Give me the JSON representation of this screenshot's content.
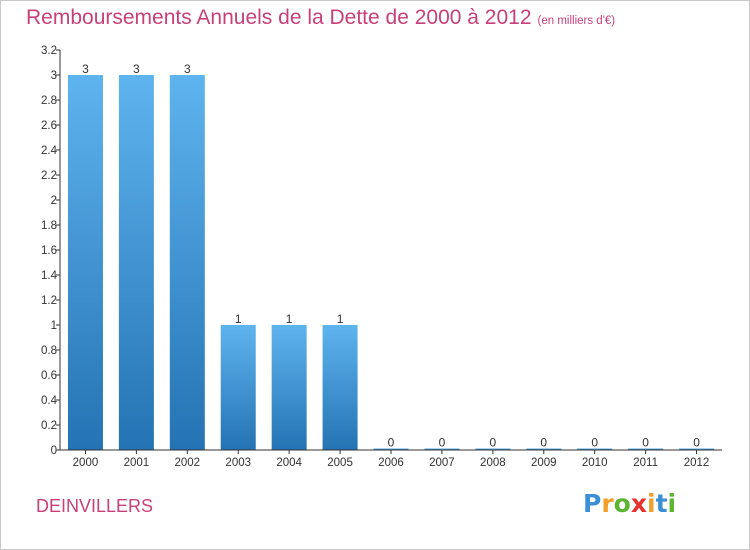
{
  "title": "Remboursements Annuels de la Dette de 2000 à 2012",
  "subtitle": "(en milliers d'€)",
  "commune": "DEINVILLERS",
  "brand": {
    "letters": [
      "P",
      "r",
      "o",
      "x",
      "i",
      "t",
      "i"
    ],
    "colors": [
      "#3b8fd6",
      "#f0a02a",
      "#5cb531",
      "#e5322d",
      "#f0a02a",
      "#3b8fd6",
      "#5cb531"
    ]
  },
  "colors": {
    "bar_top": "#5eb4ee",
    "bar_bottom": "#2473b4",
    "axis": "#333333",
    "text": "#333333",
    "accent": "#c8407a"
  },
  "chart_data": {
    "type": "bar",
    "categories": [
      "2000",
      "2001",
      "2002",
      "2003",
      "2004",
      "2005",
      "2006",
      "2007",
      "2008",
      "2009",
      "2010",
      "2011",
      "2012"
    ],
    "values": [
      3,
      3,
      3,
      1,
      1,
      1,
      0,
      0,
      0,
      0,
      0,
      0,
      0
    ],
    "value_labels": [
      "3",
      "3",
      "3",
      "1",
      "1",
      "1",
      "0",
      "0",
      "0",
      "0",
      "0",
      "0",
      "0"
    ],
    "y_ticks": [
      {
        "value": 0,
        "label": "0"
      },
      {
        "value": 0.2,
        "label": "0.2"
      },
      {
        "value": 0.4,
        "label": "0.4"
      },
      {
        "value": 0.6,
        "label": "0.6"
      },
      {
        "value": 0.8,
        "label": "0.8"
      },
      {
        "value": 1,
        "label": "1"
      },
      {
        "value": 1.2,
        "label": "1.2"
      },
      {
        "value": 1.4,
        "label": "1.4"
      },
      {
        "value": 1.6,
        "label": "1.6"
      },
      {
        "value": 1.8,
        "label": "1.8"
      },
      {
        "value": 2,
        "label": "2"
      },
      {
        "value": 2.2,
        "label": "2.2"
      },
      {
        "value": 2.4,
        "label": "2.4"
      },
      {
        "value": 2.6,
        "label": "2.6"
      },
      {
        "value": 2.8,
        "label": "2.8"
      },
      {
        "value": 3,
        "label": "3"
      },
      {
        "value": 3.2,
        "label": "3.2"
      }
    ],
    "ylim": [
      0,
      3.2
    ],
    "grid": false,
    "legend": "none"
  }
}
